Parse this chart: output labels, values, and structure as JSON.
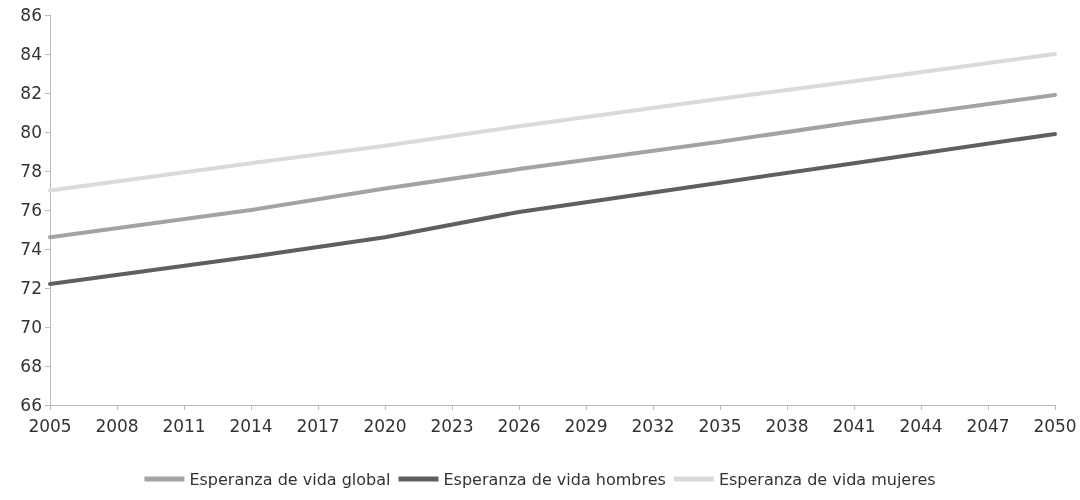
{
  "chart_data": {
    "type": "line",
    "x": [
      2005,
      2014,
      2020,
      2026,
      2035,
      2041,
      2050
    ],
    "series": [
      {
        "name": "Esperanza de vida global",
        "color": "#a3a3a3",
        "values": [
          74.6,
          76.0,
          77.1,
          78.1,
          79.5,
          80.5,
          81.9
        ]
      },
      {
        "name": "Esperanza de vida hombres",
        "color": "#5f5f5f",
        "values": [
          72.2,
          73.6,
          74.6,
          75.9,
          77.4,
          78.4,
          79.9
        ]
      },
      {
        "name": "Esperanza de vida mujeres",
        "color": "#dadada",
        "values": [
          77.0,
          78.4,
          79.3,
          80.3,
          81.7,
          82.6,
          84.0
        ]
      }
    ],
    "xlim": [
      2005,
      2050
    ],
    "xticks": [
      2005,
      2008,
      2011,
      2014,
      2017,
      2020,
      2023,
      2026,
      2029,
      2032,
      2035,
      2038,
      2041,
      2044,
      2047,
      2050
    ],
    "ylim": [
      66,
      86
    ],
    "yticks": [
      66,
      68,
      70,
      72,
      74,
      76,
      78,
      80,
      82,
      84,
      86
    ],
    "grid": false,
    "legend": "bottom",
    "marker": "none",
    "line_style": "solid"
  }
}
